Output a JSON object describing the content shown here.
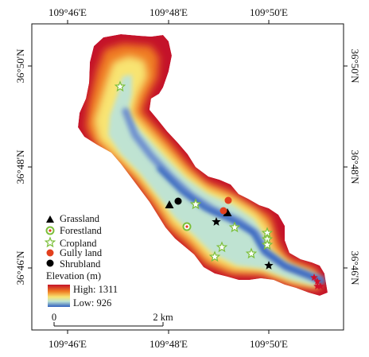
{
  "map": {
    "top_ticks": [
      "109°46'E",
      "109°48'E",
      "109°50'E"
    ],
    "bottom_ticks": [
      "109°46'E",
      "109°48'E",
      "109°50'E"
    ],
    "left_ticks": [
      "36°50'N",
      "36°48'N",
      "36°46'N"
    ],
    "right_ticks": [
      "36°50'N",
      "36°48'N",
      "36°46'N"
    ]
  },
  "legend": {
    "items": [
      {
        "label": "Grassland",
        "symbol": "triangle",
        "color": "#000000"
      },
      {
        "label": "Forestland",
        "symbol": "circle-dot",
        "color": "#7cbf3a"
      },
      {
        "label": "Cropland",
        "symbol": "star-outline",
        "color": "#7cbf3a"
      },
      {
        "label": "Gully land",
        "symbol": "circle",
        "color": "#e2401e"
      },
      {
        "label": "Shrubland",
        "symbol": "circle",
        "color": "#000000"
      }
    ],
    "elevation_title": "Elevation (m)",
    "high_label": "High: 1311",
    "low_label": "Low: 926",
    "colors": [
      "#c4122a",
      "#ef7a22",
      "#f8e472",
      "#bfe3d2",
      "#2f5fbe"
    ]
  },
  "scalebar": {
    "start_label": "0",
    "end_label": "2 km"
  },
  "sites": {
    "grassland": [
      [
        213,
        258
      ],
      [
        286,
        268
      ]
    ],
    "forestland": [
      [
        235,
        285
      ]
    ],
    "cropland": [
      [
        151,
        109
      ],
      [
        246,
        257
      ],
      [
        295,
        286
      ],
      [
        336,
        293
      ],
      [
        336,
        301
      ],
      [
        336,
        308
      ],
      [
        279,
        311
      ],
      [
        316,
        319
      ],
      [
        270,
        323
      ]
    ],
    "gully_land": [
      [
        287,
        252
      ],
      [
        281,
        265
      ]
    ],
    "shrubland": [
      [
        224,
        253
      ]
    ],
    "stars_black": [
      [
        272,
        279
      ],
      [
        338,
        334
      ]
    ],
    "stars_red": [
      [
        395,
        349
      ],
      [
        399,
        354
      ],
      [
        403,
        360
      ],
      [
        399,
        360
      ]
    ]
  }
}
